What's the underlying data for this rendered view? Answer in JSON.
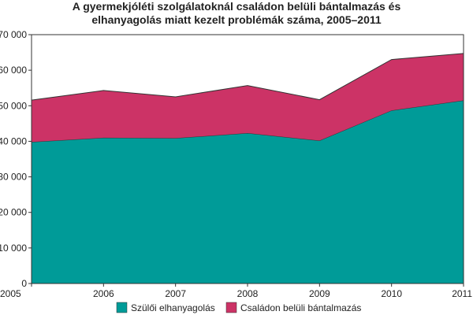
{
  "chart_data": {
    "type": "area",
    "stacked": true,
    "title_lines": [
      "A gyermekjóléti szolgálatoknál családon belüli bántalmazás és",
      "elhanyagolás miatt kezelt problémák száma, 2005–2011"
    ],
    "x": [
      "2005",
      "2006",
      "2007",
      "2008",
      "2009",
      "2010",
      "2011"
    ],
    "series": [
      {
        "name": "Szülői elhanyagolás",
        "color": "#009B98",
        "values": [
          39800,
          41000,
          40900,
          42300,
          40200,
          48700,
          51500
        ]
      },
      {
        "name": "Családon belüli bántalmazás",
        "color": "#CC3366",
        "values": [
          11800,
          13300,
          11600,
          13400,
          11500,
          14300,
          13200
        ]
      }
    ],
    "ylim": [
      0,
      70000
    ],
    "yticks": [
      0,
      10000,
      20000,
      30000,
      40000,
      50000,
      60000,
      70000
    ],
    "ytick_labels": [
      "0",
      "10 000",
      "20 000",
      "30 000",
      "40 000",
      "50 000",
      "60 000",
      "70 000"
    ],
    "grid": false,
    "legend_position": "bottom"
  }
}
